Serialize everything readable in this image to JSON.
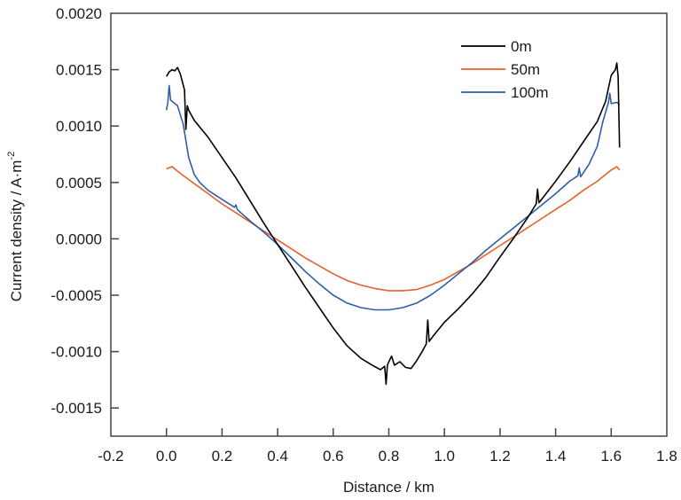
{
  "chart_data": {
    "type": "line",
    "title": "",
    "xlabel": "Distance / km",
    "ylabel_main": "Current density / A·m",
    "ylabel_sup": "-2",
    "xlim": [
      -0.2,
      1.8
    ],
    "ylim": [
      -0.00175,
      0.002
    ],
    "xticks": [
      -0.2,
      0.0,
      0.2,
      0.4,
      0.6,
      0.8,
      1.0,
      1.2,
      1.4,
      1.6,
      1.8
    ],
    "xtick_labels": [
      "-0.2",
      "0.0",
      "0.2",
      "0.4",
      "0.6",
      "0.8",
      "1.0",
      "1.2",
      "1.4",
      "1.6",
      "1.8"
    ],
    "yticks": [
      -0.0015,
      -0.001,
      -0.0005,
      0.0,
      0.0005,
      0.001,
      0.0015,
      0.002
    ],
    "ytick_labels": [
      "-0.0015",
      "-0.0010",
      "-0.0005",
      "0.0000",
      "0.0005",
      "0.0010",
      "0.0015",
      "0.0020"
    ],
    "grid": false,
    "legend_position": "top-right",
    "series": [
      {
        "name": "0m",
        "color": "#000000",
        "x": [
          0.0,
          0.01,
          0.02,
          0.03,
          0.04,
          0.05,
          0.065,
          0.07,
          0.075,
          0.08,
          0.1,
          0.15,
          0.2,
          0.25,
          0.3,
          0.35,
          0.4,
          0.45,
          0.5,
          0.55,
          0.6,
          0.65,
          0.7,
          0.74,
          0.77,
          0.785,
          0.79,
          0.795,
          0.8,
          0.81,
          0.82,
          0.84,
          0.86,
          0.88,
          0.9,
          0.92,
          0.935,
          0.94,
          0.945,
          0.96,
          1.0,
          1.05,
          1.1,
          1.15,
          1.2,
          1.25,
          1.3,
          1.33,
          1.335,
          1.34,
          1.4,
          1.45,
          1.5,
          1.55,
          1.58,
          1.6,
          1.615,
          1.62,
          1.625,
          1.63
        ],
        "y": [
          0.00144,
          0.00148,
          0.0015,
          0.00149,
          0.00152,
          0.00146,
          0.00132,
          0.00097,
          0.00118,
          0.00114,
          0.00105,
          0.0009,
          0.00072,
          0.00054,
          0.00034,
          0.00014,
          -5e-05,
          -0.00024,
          -0.00043,
          -0.00061,
          -0.00079,
          -0.00095,
          -0.00106,
          -0.00112,
          -0.00116,
          -0.00113,
          -0.00129,
          -0.00112,
          -0.00109,
          -0.00104,
          -0.00112,
          -0.00109,
          -0.00114,
          -0.00115,
          -0.00108,
          -0.001,
          -0.00093,
          -0.00072,
          -0.00091,
          -0.00086,
          -0.00074,
          -0.00062,
          -0.00049,
          -0.00034,
          -0.00016,
          1e-05,
          0.00019,
          0.00031,
          0.00044,
          0.00032,
          0.00051,
          0.00068,
          0.00086,
          0.00104,
          0.00122,
          0.00145,
          0.0015,
          0.00156,
          0.00144,
          0.00081
        ]
      },
      {
        "name": "50m",
        "color": "#E8602C",
        "x": [
          0.0,
          0.02,
          0.05,
          0.1,
          0.15,
          0.2,
          0.25,
          0.3,
          0.35,
          0.4,
          0.45,
          0.5,
          0.55,
          0.6,
          0.65,
          0.7,
          0.75,
          0.8,
          0.85,
          0.9,
          0.95,
          1.0,
          1.05,
          1.1,
          1.15,
          1.2,
          1.25,
          1.3,
          1.35,
          1.4,
          1.45,
          1.5,
          1.55,
          1.58,
          1.6,
          1.62,
          1.63
        ],
        "y": [
          0.00062,
          0.00064,
          0.00058,
          0.00049,
          0.0004,
          0.00031,
          0.00023,
          0.00015,
          7e-05,
          -1e-05,
          -9e-05,
          -0.00017,
          -0.00024,
          -0.00031,
          -0.00037,
          -0.00041,
          -0.00044,
          -0.00046,
          -0.00046,
          -0.00045,
          -0.00041,
          -0.00036,
          -0.00029,
          -0.00022,
          -0.00014,
          -6e-05,
          2e-05,
          0.0001,
          0.00018,
          0.00026,
          0.00034,
          0.00043,
          0.00051,
          0.00057,
          0.00061,
          0.00064,
          0.00061
        ]
      },
      {
        "name": "100m",
        "color": "#2E5DAA",
        "x": [
          0.0,
          0.005,
          0.01,
          0.015,
          0.02,
          0.04,
          0.06,
          0.08,
          0.1,
          0.12,
          0.15,
          0.2,
          0.245,
          0.25,
          0.255,
          0.3,
          0.35,
          0.4,
          0.45,
          0.5,
          0.55,
          0.6,
          0.65,
          0.7,
          0.75,
          0.8,
          0.85,
          0.9,
          0.95,
          1.0,
          1.05,
          1.1,
          1.15,
          1.2,
          1.25,
          1.3,
          1.35,
          1.4,
          1.45,
          1.48,
          1.485,
          1.49,
          1.52,
          1.55,
          1.57,
          1.59,
          1.595,
          1.6,
          1.62,
          1.63
        ],
        "y": [
          0.00114,
          0.00121,
          0.00136,
          0.00123,
          0.00122,
          0.00118,
          0.00102,
          0.00072,
          0.00057,
          0.0005,
          0.00043,
          0.00035,
          0.00028,
          0.0003,
          0.00026,
          0.00016,
          6e-05,
          -5e-05,
          -0.00017,
          -0.00029,
          -0.0004,
          -0.0005,
          -0.00057,
          -0.00061,
          -0.00063,
          -0.00063,
          -0.00061,
          -0.00057,
          -0.0005,
          -0.00041,
          -0.00031,
          -0.00021,
          -0.0001,
          0.0,
          0.0001,
          0.0002,
          0.0003,
          0.0004,
          0.00051,
          0.00056,
          0.00063,
          0.00055,
          0.00066,
          0.00082,
          0.00104,
          0.00121,
          0.00129,
          0.0012,
          0.00121,
          0.00119
        ]
      }
    ]
  }
}
